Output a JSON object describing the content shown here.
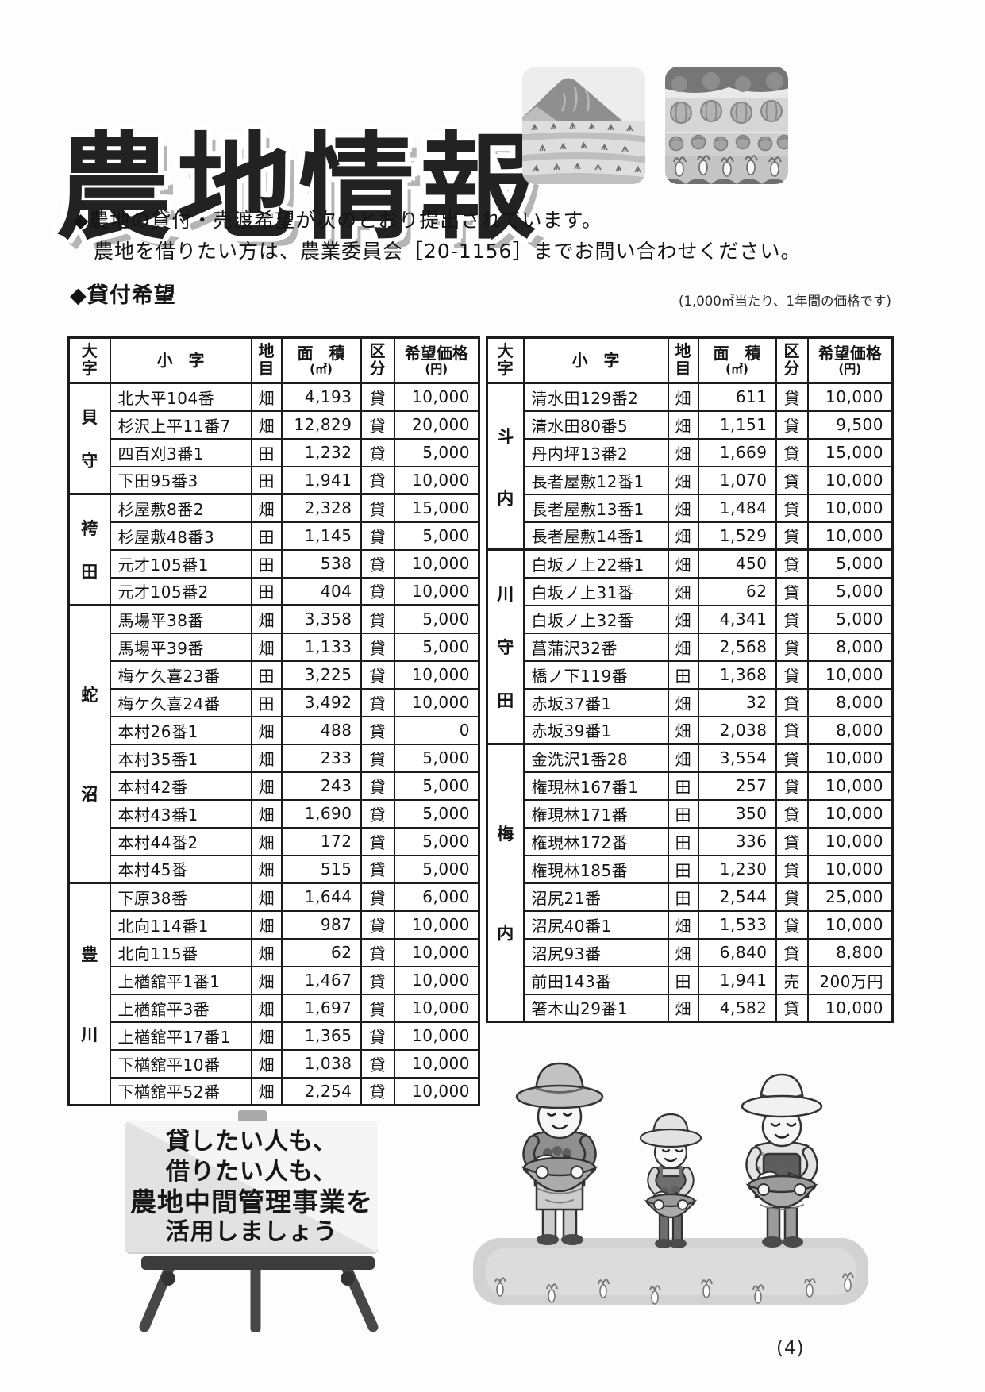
{
  "page": {
    "title": "農地情報",
    "page_number": "(4)"
  },
  "intro": {
    "line1": "◆農地の貸付・売渡希望が次のとおり提出されています。",
    "line2": "農地を借りたい方は、農業委員会［20-1156］までお問い合わせください。"
  },
  "section": {
    "heading": "◆貸付希望",
    "note": "(1,000㎡当たり、1年間の価格です)"
  },
  "table": {
    "headers": {
      "oaza": "大字",
      "koaza": "小　字",
      "chimoku": "地目",
      "menseki_line1": "面　積",
      "menseki_line2": "(㎡)",
      "kubun": "区分",
      "price_line1": "希望価格",
      "price_line2": "(円)"
    },
    "left": {
      "groups": [
        {
          "oaza": "貝守",
          "rows": [
            {
              "koaza": "北大平104番",
              "chimoku": "畑",
              "menseki": "4,193",
              "kubun": "貸",
              "price": "10,000"
            },
            {
              "koaza": "杉沢上平11番7",
              "chimoku": "畑",
              "menseki": "12,829",
              "kubun": "貸",
              "price": "20,000"
            },
            {
              "koaza": "四百刈3番1",
              "chimoku": "田",
              "menseki": "1,232",
              "kubun": "貸",
              "price": "5,000"
            },
            {
              "koaza": "下田95番3",
              "chimoku": "田",
              "menseki": "1,941",
              "kubun": "貸",
              "price": "10,000"
            }
          ]
        },
        {
          "oaza": "袴田",
          "rows": [
            {
              "koaza": "杉屋敷8番2",
              "chimoku": "畑",
              "menseki": "2,328",
              "kubun": "貸",
              "price": "15,000"
            },
            {
              "koaza": "杉屋敷48番3",
              "chimoku": "田",
              "menseki": "1,145",
              "kubun": "貸",
              "price": "5,000"
            },
            {
              "koaza": "元才105番1",
              "chimoku": "田",
              "menseki": "538",
              "kubun": "貸",
              "price": "10,000"
            },
            {
              "koaza": "元才105番2",
              "chimoku": "田",
              "menseki": "404",
              "kubun": "貸",
              "price": "10,000"
            }
          ]
        },
        {
          "oaza": "蛇沼",
          "rows": [
            {
              "koaza": "馬場平38番",
              "chimoku": "畑",
              "menseki": "3,358",
              "kubun": "貸",
              "price": "5,000"
            },
            {
              "koaza": "馬場平39番",
              "chimoku": "畑",
              "menseki": "1,133",
              "kubun": "貸",
              "price": "5,000"
            },
            {
              "koaza": "梅ケ久喜23番",
              "chimoku": "田",
              "menseki": "3,225",
              "kubun": "貸",
              "price": "10,000"
            },
            {
              "koaza": "梅ケ久喜24番",
              "chimoku": "田",
              "menseki": "3,492",
              "kubun": "貸",
              "price": "10,000"
            },
            {
              "koaza": "本村26番1",
              "chimoku": "畑",
              "menseki": "488",
              "kubun": "貸",
              "price": "0"
            },
            {
              "koaza": "本村35番1",
              "chimoku": "畑",
              "menseki": "233",
              "kubun": "貸",
              "price": "5,000"
            },
            {
              "koaza": "本村42番",
              "chimoku": "畑",
              "menseki": "243",
              "kubun": "貸",
              "price": "5,000"
            },
            {
              "koaza": "本村43番1",
              "chimoku": "畑",
              "menseki": "1,690",
              "kubun": "貸",
              "price": "5,000"
            },
            {
              "koaza": "本村44番2",
              "chimoku": "畑",
              "menseki": "172",
              "kubun": "貸",
              "price": "5,000"
            },
            {
              "koaza": "本村45番",
              "chimoku": "畑",
              "menseki": "515",
              "kubun": "貸",
              "price": "5,000"
            }
          ]
        },
        {
          "oaza": "豊川",
          "rows": [
            {
              "koaza": "下原38番",
              "chimoku": "畑",
              "menseki": "1,644",
              "kubun": "貸",
              "price": "6,000"
            },
            {
              "koaza": "北向114番1",
              "chimoku": "畑",
              "menseki": "987",
              "kubun": "貸",
              "price": "10,000"
            },
            {
              "koaza": "北向115番",
              "chimoku": "畑",
              "menseki": "62",
              "kubun": "貸",
              "price": "10,000"
            },
            {
              "koaza": "上楢舘平1番1",
              "chimoku": "畑",
              "menseki": "1,467",
              "kubun": "貸",
              "price": "10,000"
            },
            {
              "koaza": "上楢舘平3番",
              "chimoku": "畑",
              "menseki": "1,697",
              "kubun": "貸",
              "price": "10,000"
            },
            {
              "koaza": "上楢舘平17番1",
              "chimoku": "畑",
              "menseki": "1,365",
              "kubun": "貸",
              "price": "10,000"
            },
            {
              "koaza": "下楢舘平10番",
              "chimoku": "畑",
              "menseki": "1,038",
              "kubun": "貸",
              "price": "10,000"
            },
            {
              "koaza": "下楢舘平52番",
              "chimoku": "畑",
              "menseki": "2,254",
              "kubun": "貸",
              "price": "10,000"
            }
          ]
        }
      ]
    },
    "right": {
      "groups": [
        {
          "oaza": "斗内",
          "rows": [
            {
              "koaza": "清水田129番2",
              "chimoku": "畑",
              "menseki": "611",
              "kubun": "貸",
              "price": "10,000"
            },
            {
              "koaza": "清水田80番5",
              "chimoku": "畑",
              "menseki": "1,151",
              "kubun": "貸",
              "price": "9,500"
            },
            {
              "koaza": "丹内坪13番2",
              "chimoku": "畑",
              "menseki": "1,669",
              "kubun": "貸",
              "price": "15,000"
            },
            {
              "koaza": "長者屋敷12番1",
              "chimoku": "畑",
              "menseki": "1,070",
              "kubun": "貸",
              "price": "10,000"
            },
            {
              "koaza": "長者屋敷13番1",
              "chimoku": "畑",
              "menseki": "1,484",
              "kubun": "貸",
              "price": "10,000"
            },
            {
              "koaza": "長者屋敷14番1",
              "chimoku": "畑",
              "menseki": "1,529",
              "kubun": "貸",
              "price": "10,000"
            }
          ]
        },
        {
          "oaza": "川守田",
          "rows": [
            {
              "koaza": "白坂ノ上22番1",
              "chimoku": "畑",
              "menseki": "450",
              "kubun": "貸",
              "price": "5,000"
            },
            {
              "koaza": "白坂ノ上31番",
              "chimoku": "畑",
              "menseki": "62",
              "kubun": "貸",
              "price": "5,000"
            },
            {
              "koaza": "白坂ノ上32番",
              "chimoku": "畑",
              "menseki": "4,341",
              "kubun": "貸",
              "price": "5,000"
            },
            {
              "koaza": "菖蒲沢32番",
              "chimoku": "畑",
              "menseki": "2,568",
              "kubun": "貸",
              "price": "8,000"
            },
            {
              "koaza": "橋ノ下119番",
              "chimoku": "田",
              "menseki": "1,368",
              "kubun": "貸",
              "price": "10,000"
            },
            {
              "koaza": "赤坂37番1",
              "chimoku": "畑",
              "menseki": "32",
              "kubun": "貸",
              "price": "8,000"
            },
            {
              "koaza": "赤坂39番1",
              "chimoku": "畑",
              "menseki": "2,038",
              "kubun": "貸",
              "price": "8,000"
            }
          ]
        },
        {
          "oaza": "梅内",
          "rows": [
            {
              "koaza": "金洗沢1番28",
              "chimoku": "畑",
              "menseki": "3,554",
              "kubun": "貸",
              "price": "10,000"
            },
            {
              "koaza": "権現林167番1",
              "chimoku": "田",
              "menseki": "257",
              "kubun": "貸",
              "price": "10,000"
            },
            {
              "koaza": "権現林171番",
              "chimoku": "田",
              "menseki": "350",
              "kubun": "貸",
              "price": "10,000"
            },
            {
              "koaza": "権現林172番",
              "chimoku": "田",
              "menseki": "336",
              "kubun": "貸",
              "price": "10,000"
            },
            {
              "koaza": "権現林185番",
              "chimoku": "田",
              "menseki": "1,230",
              "kubun": "貸",
              "price": "10,000"
            },
            {
              "koaza": "沼尻21番",
              "chimoku": "田",
              "menseki": "2,544",
              "kubun": "貸",
              "price": "25,000"
            },
            {
              "koaza": "沼尻40番1",
              "chimoku": "畑",
              "menseki": "1,533",
              "kubun": "貸",
              "price": "10,000"
            },
            {
              "koaza": "沼尻93番",
              "chimoku": "畑",
              "menseki": "6,840",
              "kubun": "貸",
              "price": "8,800"
            },
            {
              "koaza": "前田143番",
              "chimoku": "田",
              "menseki": "1,941",
              "kubun": "売",
              "price": "200万円"
            },
            {
              "koaza": "箸木山29番1",
              "chimoku": "畑",
              "menseki": "4,582",
              "kubun": "貸",
              "price": "10,000"
            }
          ]
        }
      ]
    }
  },
  "sign": {
    "lines": [
      "貸したい人も、",
      "借りたい人も、",
      "農地中間管理事業を",
      "活用しましょう"
    ]
  },
  "illustrations": {
    "top_right_1": "rice-paddy-landscape",
    "top_right_2": "vegetable-field",
    "bottom_left": "easel-signboard",
    "bottom_right": "three-farmers-with-vegetable-baskets"
  }
}
